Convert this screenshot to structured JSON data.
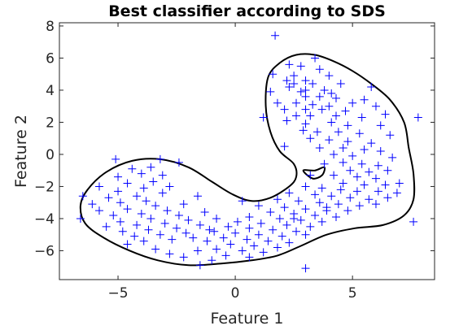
{
  "chart_data": {
    "type": "scatter",
    "title": "Best classifier according to SDS",
    "xlabel": "Feature 1",
    "ylabel": "Feature 2",
    "xlim": [
      -7.5,
      8.5
    ],
    "ylim": [
      -7.8,
      8.2
    ],
    "xticks": [
      -5,
      0,
      5
    ],
    "xtick_labels": [
      "−5",
      "0",
      "5"
    ],
    "yticks": [
      -6,
      -4,
      -2,
      0,
      2,
      4,
      6,
      8
    ],
    "ytick_labels": [
      "−6",
      "−4",
      "−2",
      "0",
      "2",
      "4",
      "6",
      "8"
    ],
    "grid": false,
    "legend": "none",
    "marker": "+",
    "marker_color": "#0000ff",
    "boundary_color": "#000000",
    "series": [
      {
        "type": "scatter",
        "points": [
          [
            1.7,
            7.4
          ],
          [
            3.4,
            6.0
          ],
          [
            2.3,
            5.6
          ],
          [
            2.8,
            5.5
          ],
          [
            3.6,
            5.3
          ],
          [
            4.0,
            4.9
          ],
          [
            1.6,
            5.0
          ],
          [
            2.5,
            4.9
          ],
          [
            2.2,
            4.6
          ],
          [
            3.0,
            4.6
          ],
          [
            2.5,
            4.4
          ],
          [
            3.3,
            4.4
          ],
          [
            4.5,
            4.4
          ],
          [
            2.3,
            4.2
          ],
          [
            3.0,
            4.0
          ],
          [
            3.8,
            4.0
          ],
          [
            1.5,
            3.9
          ],
          [
            2.8,
            3.9
          ],
          [
            4.1,
            3.8
          ],
          [
            5.8,
            4.2
          ],
          [
            3.0,
            3.6
          ],
          [
            3.6,
            3.6
          ],
          [
            4.3,
            3.5
          ],
          [
            5.5,
            3.4
          ],
          [
            1.8,
            3.2
          ],
          [
            2.6,
            3.2
          ],
          [
            3.3,
            3.1
          ],
          [
            4.0,
            3.0
          ],
          [
            5.0,
            3.2
          ],
          [
            6.0,
            3.0
          ],
          [
            2.1,
            2.8
          ],
          [
            3.0,
            2.8
          ],
          [
            3.7,
            2.8
          ],
          [
            4.7,
            2.7
          ],
          [
            6.4,
            2.5
          ],
          [
            1.2,
            2.3
          ],
          [
            2.6,
            2.4
          ],
          [
            3.2,
            2.4
          ],
          [
            4.3,
            2.4
          ],
          [
            5.4,
            2.3
          ],
          [
            7.8,
            2.3
          ],
          [
            2.2,
            2.1
          ],
          [
            3.0,
            1.9
          ],
          [
            4.1,
            2.0
          ],
          [
            4.8,
            1.8
          ],
          [
            6.2,
            1.8
          ],
          [
            2.9,
            1.5
          ],
          [
            3.5,
            1.4
          ],
          [
            4.4,
            1.4
          ],
          [
            5.3,
            1.3
          ],
          [
            6.6,
            1.2
          ],
          [
            3.2,
            1.0
          ],
          [
            4.0,
            0.9
          ],
          [
            4.8,
            0.8
          ],
          [
            5.8,
            0.7
          ],
          [
            2.1,
            0.5
          ],
          [
            3.6,
            0.4
          ],
          [
            4.6,
            0.4
          ],
          [
            5.5,
            0.3
          ],
          [
            6.2,
            0.2
          ],
          [
            4.2,
            0.0
          ],
          [
            5.0,
            -0.1
          ],
          [
            6.7,
            -0.2
          ],
          [
            3.8,
            -0.6
          ],
          [
            4.6,
            -0.5
          ],
          [
            5.4,
            -0.6
          ],
          [
            6.1,
            -0.7
          ],
          [
            4.9,
            -1.0
          ],
          [
            5.7,
            -1.1
          ],
          [
            6.5,
            -1.0
          ],
          [
            3.2,
            -1.3
          ],
          [
            4.2,
            -1.3
          ],
          [
            5.2,
            -1.4
          ],
          [
            6.0,
            -1.5
          ],
          [
            4.6,
            -1.8
          ],
          [
            5.5,
            -1.9
          ],
          [
            6.4,
            -1.9
          ],
          [
            7.0,
            -1.8
          ],
          [
            3.0,
            -2.0
          ],
          [
            3.7,
            -2.1
          ],
          [
            4.5,
            -2.2
          ],
          [
            5.2,
            -2.3
          ],
          [
            6.1,
            -2.3
          ],
          [
            6.9,
            -2.4
          ],
          [
            2.3,
            -2.4
          ],
          [
            3.4,
            -2.5
          ],
          [
            4.1,
            -2.6
          ],
          [
            4.9,
            -2.7
          ],
          [
            5.7,
            -2.8
          ],
          [
            6.5,
            -2.7
          ],
          [
            1.8,
            -2.8
          ],
          [
            2.7,
            -2.9
          ],
          [
            3.6,
            -3.0
          ],
          [
            4.4,
            -3.1
          ],
          [
            5.3,
            -3.2
          ],
          [
            6.0,
            -3.1
          ],
          [
            1.0,
            -3.2
          ],
          [
            2.1,
            -3.3
          ],
          [
            3.0,
            -3.4
          ],
          [
            3.9,
            -3.5
          ],
          [
            4.8,
            -3.5
          ],
          [
            1.5,
            -3.6
          ],
          [
            2.5,
            -3.7
          ],
          [
            3.4,
            -3.8
          ],
          [
            4.3,
            -3.9
          ],
          [
            7.6,
            -4.2
          ],
          [
            0.6,
            -3.9
          ],
          [
            1.9,
            -4.0
          ],
          [
            2.8,
            -4.1
          ],
          [
            3.7,
            -4.2
          ],
          [
            0.1,
            -4.2
          ],
          [
            1.1,
            -4.3
          ],
          [
            2.2,
            -4.4
          ],
          [
            3.2,
            -4.5
          ],
          [
            -0.3,
            -4.5
          ],
          [
            0.6,
            -4.6
          ],
          [
            1.6,
            -4.7
          ],
          [
            2.6,
            -4.8
          ],
          [
            -0.9,
            -4.8
          ],
          [
            0.0,
            -4.9
          ],
          [
            1.0,
            -5.0
          ],
          [
            2.0,
            -5.1
          ],
          [
            3.0,
            -5.0
          ],
          [
            -0.5,
            -5.2
          ],
          [
            0.5,
            -5.3
          ],
          [
            1.4,
            -5.4
          ],
          [
            2.3,
            -5.5
          ],
          [
            -1.2,
            -5.4
          ],
          [
            -0.2,
            -5.6
          ],
          [
            0.8,
            -5.7
          ],
          [
            1.8,
            -5.8
          ],
          [
            -0.8,
            -5.9
          ],
          [
            0.3,
            -6.0
          ],
          [
            1.2,
            -6.1
          ],
          [
            -1.6,
            -6.0
          ],
          [
            -0.4,
            -6.3
          ],
          [
            0.6,
            -6.4
          ],
          [
            -2.2,
            -6.4
          ],
          [
            -1.0,
            -6.6
          ],
          [
            3.0,
            -7.1
          ],
          [
            -1.5,
            -6.9
          ],
          [
            -2.8,
            -6.2
          ],
          [
            -3.4,
            -5.9
          ],
          [
            -4.6,
            -5.6
          ],
          [
            -3.9,
            -5.4
          ],
          [
            -2.7,
            -5.3
          ],
          [
            -1.8,
            -5.2
          ],
          [
            -4.3,
            -5.1
          ],
          [
            -3.2,
            -5.0
          ],
          [
            -2.1,
            -4.9
          ],
          [
            -1.1,
            -4.7
          ],
          [
            -4.8,
            -4.8
          ],
          [
            -3.7,
            -4.7
          ],
          [
            -2.5,
            -4.6
          ],
          [
            -1.5,
            -4.4
          ],
          [
            -5.5,
            -4.5
          ],
          [
            -4.2,
            -4.4
          ],
          [
            -3.0,
            -4.3
          ],
          [
            -2.0,
            -4.1
          ],
          [
            -0.8,
            -4.0
          ],
          [
            -4.9,
            -4.2
          ],
          [
            -3.6,
            -4.0
          ],
          [
            -2.4,
            -3.8
          ],
          [
            -1.3,
            -3.6
          ],
          [
            -6.6,
            -4.0
          ],
          [
            -5.2,
            -3.8
          ],
          [
            -4.0,
            -3.7
          ],
          [
            -2.9,
            -3.5
          ],
          [
            -5.8,
            -3.5
          ],
          [
            -4.6,
            -3.4
          ],
          [
            -3.4,
            -3.2
          ],
          [
            -2.2,
            -3.1
          ],
          [
            -6.1,
            -3.1
          ],
          [
            -4.9,
            -3.0
          ],
          [
            -3.8,
            -2.9
          ],
          [
            -1.6,
            -2.6
          ],
          [
            -5.4,
            -2.7
          ],
          [
            -4.2,
            -2.6
          ],
          [
            -3.1,
            -2.4
          ],
          [
            -6.5,
            -2.6
          ],
          [
            -5.0,
            -2.3
          ],
          [
            -3.9,
            -2.1
          ],
          [
            -2.8,
            -2.0
          ],
          [
            -5.8,
            -2.0
          ],
          [
            -4.6,
            -1.8
          ],
          [
            -3.5,
            -1.7
          ],
          [
            -5.0,
            -1.4
          ],
          [
            -4.0,
            -1.2
          ],
          [
            -3.1,
            -1.3
          ],
          [
            -4.4,
            -0.9
          ],
          [
            -3.6,
            -0.8
          ],
          [
            -5.1,
            -0.3
          ],
          [
            -3.2,
            -0.3
          ],
          [
            -2.4,
            -0.5
          ],
          [
            2.5,
            -4.0
          ],
          [
            3.9,
            -3.3
          ],
          [
            0.3,
            -2.9
          ]
        ]
      }
    ],
    "decision_boundary": [
      [
        [
          1.4,
          4.8
        ],
        [
          1.9,
          5.7
        ],
        [
          2.6,
          6.2
        ],
        [
          3.4,
          6.2
        ],
        [
          4.2,
          5.8
        ],
        [
          5.0,
          5.2
        ],
        [
          5.8,
          4.4
        ],
        [
          6.6,
          3.4
        ],
        [
          7.2,
          2.0
        ],
        [
          7.4,
          0.4
        ],
        [
          7.6,
          -1.2
        ],
        [
          7.6,
          -2.8
        ],
        [
          7.2,
          -3.8
        ],
        [
          6.3,
          -4.4
        ],
        [
          5.1,
          -4.6
        ],
        [
          3.9,
          -5.0
        ],
        [
          2.8,
          -5.7
        ],
        [
          1.8,
          -6.3
        ],
        [
          0.7,
          -6.6
        ],
        [
          -0.6,
          -6.8
        ],
        [
          -2.0,
          -6.9
        ],
        [
          -3.3,
          -6.6
        ],
        [
          -4.5,
          -6.0
        ],
        [
          -5.6,
          -5.2
        ],
        [
          -6.4,
          -4.3
        ],
        [
          -6.6,
          -3.2
        ],
        [
          -6.3,
          -2.2
        ],
        [
          -5.5,
          -1.1
        ],
        [
          -4.4,
          -0.4
        ],
        [
          -3.2,
          -0.3
        ],
        [
          -2.0,
          -0.8
        ],
        [
          -1.0,
          -1.7
        ],
        [
          -0.1,
          -2.5
        ],
        [
          0.7,
          -2.9
        ],
        [
          1.5,
          -2.7
        ],
        [
          2.3,
          -2.0
        ],
        [
          2.6,
          -1.4
        ],
        [
          2.5,
          -0.6
        ],
        [
          1.9,
          0.2
        ],
        [
          1.5,
          1.4
        ],
        [
          1.3,
          3.0
        ],
        [
          1.4,
          4.8
        ]
      ],
      [
        [
          2.9,
          -1.0
        ],
        [
          3.4,
          -1.0
        ],
        [
          3.8,
          -0.8
        ],
        [
          3.7,
          -1.3
        ],
        [
          3.3,
          -1.5
        ],
        [
          2.9,
          -1.0
        ]
      ]
    ]
  }
}
